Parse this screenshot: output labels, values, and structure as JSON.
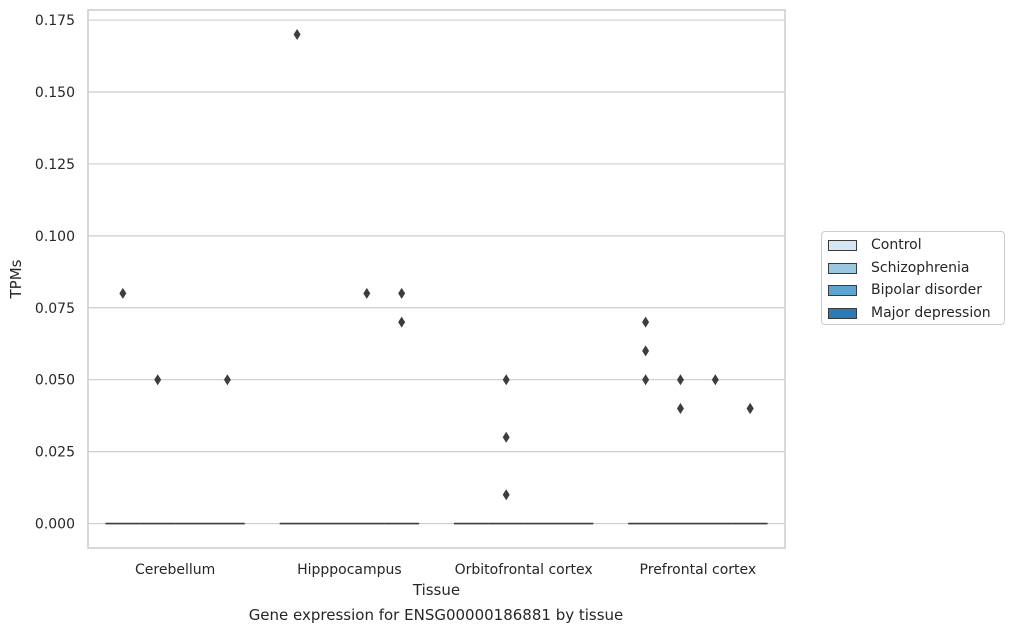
{
  "chart_data": {
    "type": "box",
    "caption": "Gene expression for ENSG00000186881 by tissue",
    "xlabel": "Tissue",
    "ylabel": "TPMs",
    "ylim": [
      -0.0085,
      0.1785
    ],
    "yticks": [
      "0.000",
      "0.025",
      "0.050",
      "0.075",
      "0.100",
      "0.125",
      "0.150",
      "0.175"
    ],
    "ytick_values": [
      0,
      0.025,
      0.05,
      0.075,
      0.1,
      0.125,
      0.15,
      0.175
    ],
    "categories": [
      "Cerebellum",
      "Hipppocampus",
      "Orbitofrontal cortex",
      "Prefrontal cortex"
    ],
    "grid": true,
    "legend_position": "right",
    "series": [
      {
        "name": "Control",
        "color": "#d6e6f4"
      },
      {
        "name": "Schizophrenia",
        "color": "#9ac8e0"
      },
      {
        "name": "Bipolar disorder",
        "color": "#5da4d0"
      },
      {
        "name": "Major depression",
        "color": "#2c7bb6"
      }
    ],
    "medians": [
      [
        0,
        0,
        0,
        0
      ],
      [
        0,
        0,
        0,
        0
      ],
      [
        0,
        0,
        0,
        0
      ],
      [
        0,
        0,
        0,
        0
      ]
    ],
    "outliers": [
      {
        "category": "Cerebellum",
        "series": "Control",
        "value": 0.08
      },
      {
        "category": "Cerebellum",
        "series": "Schizophrenia",
        "value": 0.05
      },
      {
        "category": "Cerebellum",
        "series": "Major depression",
        "value": 0.05
      },
      {
        "category": "Hipppocampus",
        "series": "Control",
        "value": 0.17
      },
      {
        "category": "Hipppocampus",
        "series": "Bipolar disorder",
        "value": 0.08
      },
      {
        "category": "Hipppocampus",
        "series": "Major depression",
        "value": 0.08
      },
      {
        "category": "Hipppocampus",
        "series": "Major depression",
        "value": 0.07
      },
      {
        "category": "Orbitofrontal cortex",
        "series": "Schizophrenia",
        "value": 0.05
      },
      {
        "category": "Orbitofrontal cortex",
        "series": "Schizophrenia",
        "value": 0.03
      },
      {
        "category": "Orbitofrontal cortex",
        "series": "Schizophrenia",
        "value": 0.01
      },
      {
        "category": "Prefrontal cortex",
        "series": "Control",
        "value": 0.07
      },
      {
        "category": "Prefrontal cortex",
        "series": "Control",
        "value": 0.06
      },
      {
        "category": "Prefrontal cortex",
        "series": "Control",
        "value": 0.05
      },
      {
        "category": "Prefrontal cortex",
        "series": "Schizophrenia",
        "value": 0.05
      },
      {
        "category": "Prefrontal cortex",
        "series": "Schizophrenia",
        "value": 0.04
      },
      {
        "category": "Prefrontal cortex",
        "series": "Bipolar disorder",
        "value": 0.05
      },
      {
        "category": "Prefrontal cortex",
        "series": "Major depression",
        "value": 0.04
      },
      {
        "category": "Prefrontal cortex",
        "series": "Major depression",
        "value": 0.04
      }
    ]
  }
}
